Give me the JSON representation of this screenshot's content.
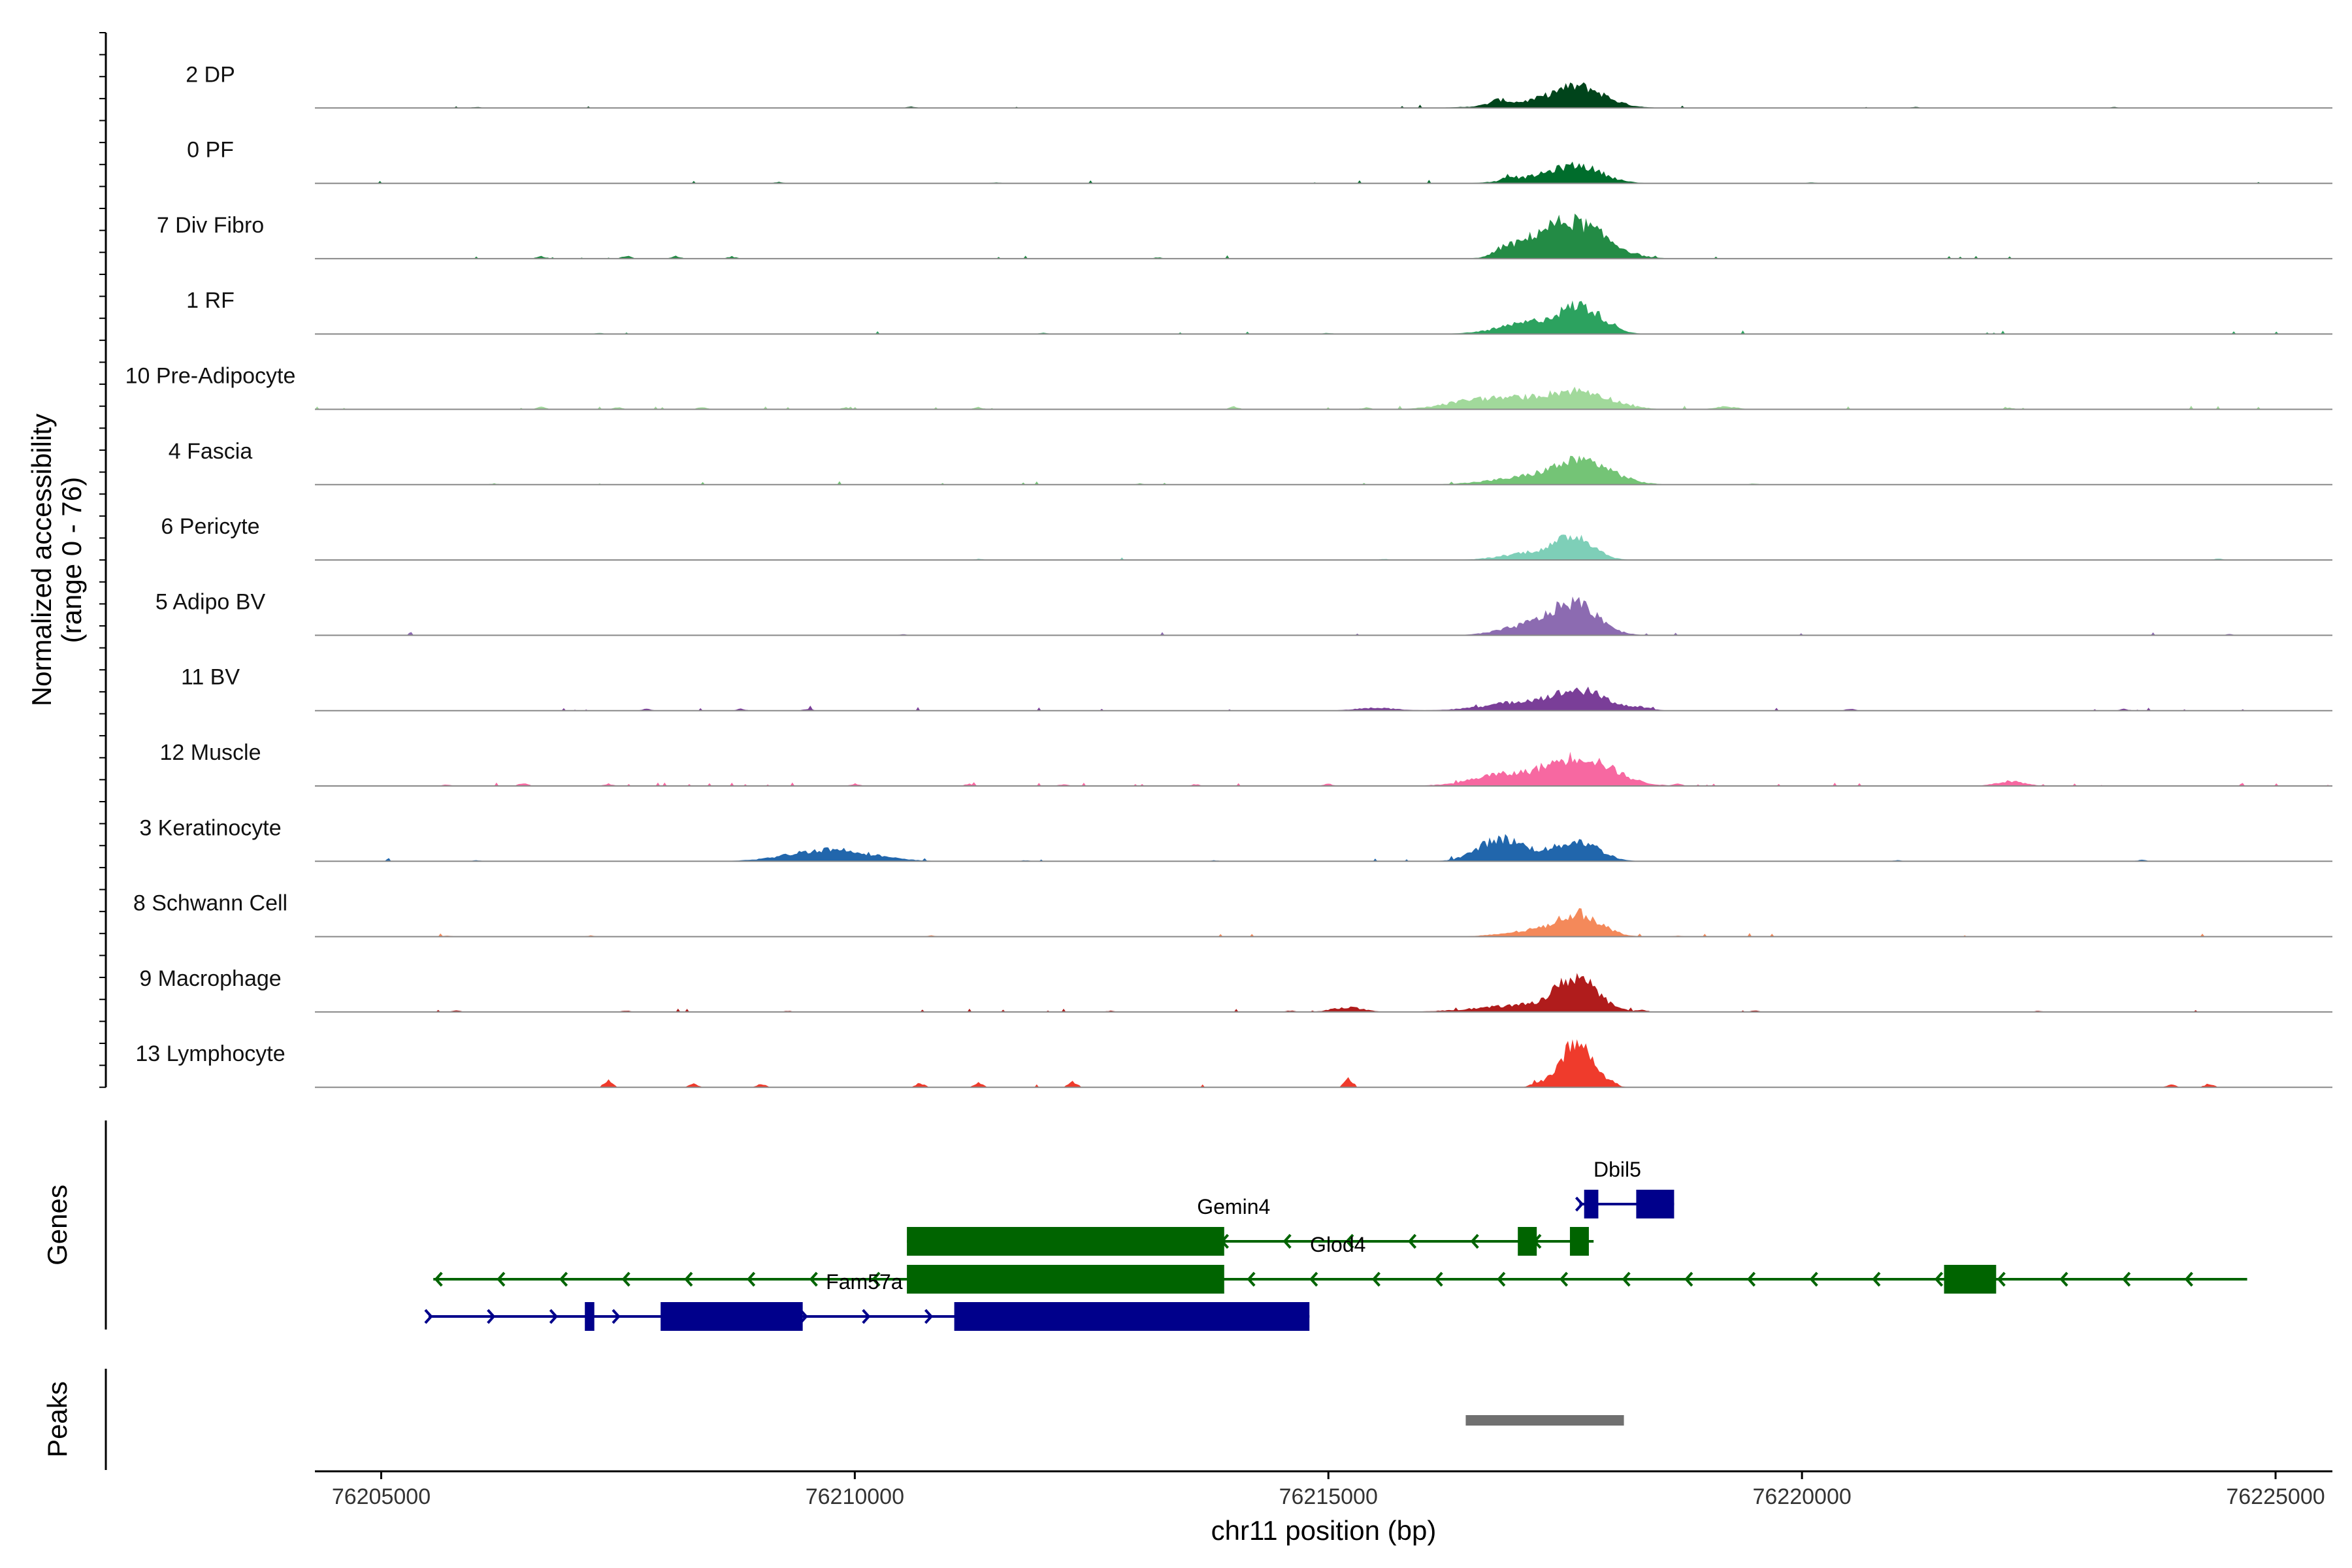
{
  "chart_data": {
    "type": "area",
    "title": "",
    "ylabel_line1": "Normalized accessibility",
    "ylabel_line2": "(range 0 - 76)",
    "ylim": [
      0,
      76
    ],
    "xlabel": "chr11 position (bp)",
    "xlim": [
      76204300,
      76225600
    ],
    "x_ticks": [
      76205000,
      76210000,
      76215000,
      76220000,
      76225000
    ],
    "x_tick_labels": [
      "76205000",
      "76210000",
      "76215000",
      "76220000",
      "76225000"
    ],
    "panel_labels": {
      "genes": "Genes",
      "peaks": "Peaks"
    },
    "baseline_color": "#888888",
    "series": [
      {
        "name": "2 DP",
        "color": "#00441b",
        "peaks": [
          [
            76217650,
            1280,
            260
          ],
          [
            76217300,
            450,
            480
          ],
          [
            76216800,
            350,
            90
          ]
        ],
        "noise": 6,
        "spikes": [
          [
            76206000,
            3
          ],
          [
            76210600,
            4
          ],
          [
            76221200,
            3
          ],
          [
            76223300,
            3
          ]
        ]
      },
      {
        "name": "0 PF",
        "color": "#006d2c",
        "peaks": [
          [
            76217650,
            1200,
            250
          ],
          [
            76217200,
            400,
            300
          ],
          [
            76216900,
            350,
            60
          ]
        ],
        "noise": 6,
        "spikes": [
          [
            76209200,
            4
          ],
          [
            76211500,
            3
          ],
          [
            76220100,
            3
          ]
        ]
      },
      {
        "name": "7 Div Fibro",
        "color": "#238b45",
        "peaks": [
          [
            76217600,
            2600,
            330
          ],
          [
            76217150,
            700,
            250
          ],
          [
            76216850,
            420,
            90
          ]
        ],
        "noise": 9,
        "spikes": [
          [
            76206700,
            7
          ],
          [
            76207600,
            8
          ],
          [
            76208100,
            7
          ],
          [
            76208700,
            6
          ],
          [
            76213200,
            4
          ]
        ]
      },
      {
        "name": "1 RF",
        "color": "#2ca25f",
        "peaks": [
          [
            76217670,
            1750,
            200
          ],
          [
            76217200,
            900,
            350
          ],
          [
            76218000,
            250,
            120
          ]
        ],
        "noise": 8,
        "spikes": [
          [
            76207300,
            3
          ],
          [
            76212000,
            3
          ],
          [
            76215000,
            3
          ]
        ]
      },
      {
        "name": "10 Pre-Adipocyte",
        "color": "#a1d99b",
        "peaks": [
          [
            76217700,
            1050,
            300
          ],
          [
            76217100,
            750,
            450
          ],
          [
            76216500,
            420,
            300
          ],
          [
            76219200,
            200,
            120
          ]
        ],
        "noise": 22,
        "spikes": [
          [
            76206700,
            7
          ],
          [
            76207500,
            6
          ],
          [
            76208400,
            7
          ],
          [
            76209900,
            5
          ],
          [
            76211300,
            6
          ],
          [
            76214000,
            8
          ],
          [
            76215400,
            5
          ],
          [
            76222200,
            4
          ]
        ]
      },
      {
        "name": "4 Fascia",
        "color": "#74c476",
        "peaks": [
          [
            76217700,
            1650,
            300
          ],
          [
            76217100,
            500,
            400
          ]
        ],
        "noise": 6,
        "spikes": [
          [
            76206200,
            3
          ],
          [
            76213000,
            3
          ],
          [
            76219500,
            3
          ]
        ]
      },
      {
        "name": "6 Pericyte",
        "color": "#7ecfb8",
        "peaks": [
          [
            76217620,
            1550,
            190
          ],
          [
            76217200,
            600,
            320
          ]
        ],
        "noise": 6,
        "spikes": [
          [
            76211300,
            3
          ],
          [
            76215600,
            3
          ],
          [
            76224400,
            4
          ]
        ]
      },
      {
        "name": "5 Adipo BV",
        "color": "#8c6bb1",
        "peaks": [
          [
            76217620,
            2200,
            240
          ],
          [
            76217150,
            750,
            300
          ]
        ],
        "noise": 6,
        "spikes": [
          [
            76210500,
            3
          ],
          [
            76224500,
            3
          ]
        ]
      },
      {
        "name": "11 BV",
        "color": "#7a3e98",
        "peaks": [
          [
            76217700,
            1100,
            250
          ],
          [
            76217200,
            750,
            450
          ],
          [
            76218300,
            180,
            120
          ],
          [
            76215500,
            200,
            220
          ]
        ],
        "noise": 14,
        "spikes": [
          [
            76207800,
            6
          ],
          [
            76208800,
            5
          ],
          [
            76209500,
            5
          ],
          [
            76220500,
            5
          ],
          [
            76223400,
            5
          ]
        ]
      },
      {
        "name": "12 Muscle",
        "color": "#f768a1",
        "peaks": [
          [
            76217700,
            1650,
            320
          ],
          [
            76217200,
            800,
            500
          ],
          [
            76216700,
            300,
            200
          ],
          [
            76222200,
            350,
            150
          ]
        ],
        "noise": 24,
        "spikes": [
          [
            76205700,
            4
          ],
          [
            76206500,
            8
          ],
          [
            76207400,
            6
          ],
          [
            76210000,
            6
          ],
          [
            76211200,
            6
          ],
          [
            76212200,
            5
          ],
          [
            76213600,
            5
          ],
          [
            76215000,
            6
          ],
          [
            76218700,
            5
          ]
        ]
      },
      {
        "name": "3 Keratinocyte",
        "color": "#2166ac",
        "peaks": [
          [
            76217650,
            1400,
            220
          ],
          [
            76216800,
            1550,
            230
          ],
          [
            76209750,
            900,
            420
          ],
          [
            76217200,
            400,
            260
          ]
        ],
        "noise": 7,
        "spikes": [
          [
            76206000,
            3
          ],
          [
            76211800,
            3
          ],
          [
            76213800,
            3
          ],
          [
            76221000,
            3
          ],
          [
            76223600,
            4
          ]
        ]
      },
      {
        "name": "8 Schwann Cell",
        "color": "#f4895a",
        "peaks": [
          [
            76217650,
            1600,
            230
          ],
          [
            76217150,
            400,
            300
          ]
        ],
        "noise": 6,
        "spikes": [
          [
            76205700,
            3
          ],
          [
            76207200,
            3
          ],
          [
            76210800,
            3
          ],
          [
            76218700,
            3
          ]
        ]
      },
      {
        "name": "9 Macrophage",
        "color": "#b01c1c",
        "peaks": [
          [
            76217620,
            2300,
            210
          ],
          [
            76217100,
            500,
            500
          ],
          [
            76215200,
            350,
            160
          ]
        ],
        "noise": 14,
        "spikes": [
          [
            76205800,
            4
          ],
          [
            76207600,
            4
          ],
          [
            76209300,
            3
          ],
          [
            76212700,
            3
          ],
          [
            76214600,
            4
          ],
          [
            76218300,
            5
          ],
          [
            76219500,
            4
          ],
          [
            76222500,
            3
          ]
        ]
      },
      {
        "name": "13 Lymphocyte",
        "color": "#ef3b2c",
        "peaks": [
          [
            76217620,
            3400,
            170
          ],
          [
            76217200,
            250,
            60
          ]
        ],
        "noise": 4,
        "spikes": [
          [
            76207400,
            18
          ],
          [
            76208300,
            10
          ],
          [
            76209000,
            9
          ],
          [
            76210700,
            12
          ],
          [
            76211300,
            12
          ],
          [
            76212300,
            16
          ],
          [
            76215200,
            24
          ],
          [
            76218000,
            8
          ],
          [
            76223900,
            8
          ],
          [
            76224300,
            10
          ]
        ]
      }
    ],
    "genes": [
      {
        "name": "Dbil5",
        "strand": "+",
        "row": 0,
        "color": "#00008b",
        "start": 76217650,
        "end": 76218650,
        "exons": [
          [
            76217700,
            76217850
          ],
          [
            76218250,
            76218650
          ]
        ],
        "label_x": 76218050
      },
      {
        "name": "Gemin4",
        "strand": "-",
        "row": 1,
        "color": "#006400",
        "start": 76210550,
        "end": 76217800,
        "exons": [
          [
            76210550,
            76213900
          ],
          [
            76217000,
            76217200
          ],
          [
            76217550,
            76217750
          ]
        ],
        "label_x": 76214000
      },
      {
        "name": "Glod4",
        "strand": "-",
        "row": 2,
        "color": "#006400",
        "start": 76205550,
        "end": 76224700,
        "exons": [
          [
            76210550,
            76213900
          ],
          [
            76221500,
            76222050
          ]
        ],
        "label_x": 76215100
      },
      {
        "name": "Fam57a",
        "strand": "+",
        "row": 3,
        "color": "#00008b",
        "start": 76205500,
        "end": 76214800,
        "exons": [
          [
            76207150,
            76207250
          ],
          [
            76207950,
            76209450
          ],
          [
            76211050,
            76214800
          ]
        ],
        "label_x": 76210100
      }
    ],
    "peak_regions": [
      [
        76216450,
        76218120
      ]
    ],
    "peak_color": "#707070"
  }
}
